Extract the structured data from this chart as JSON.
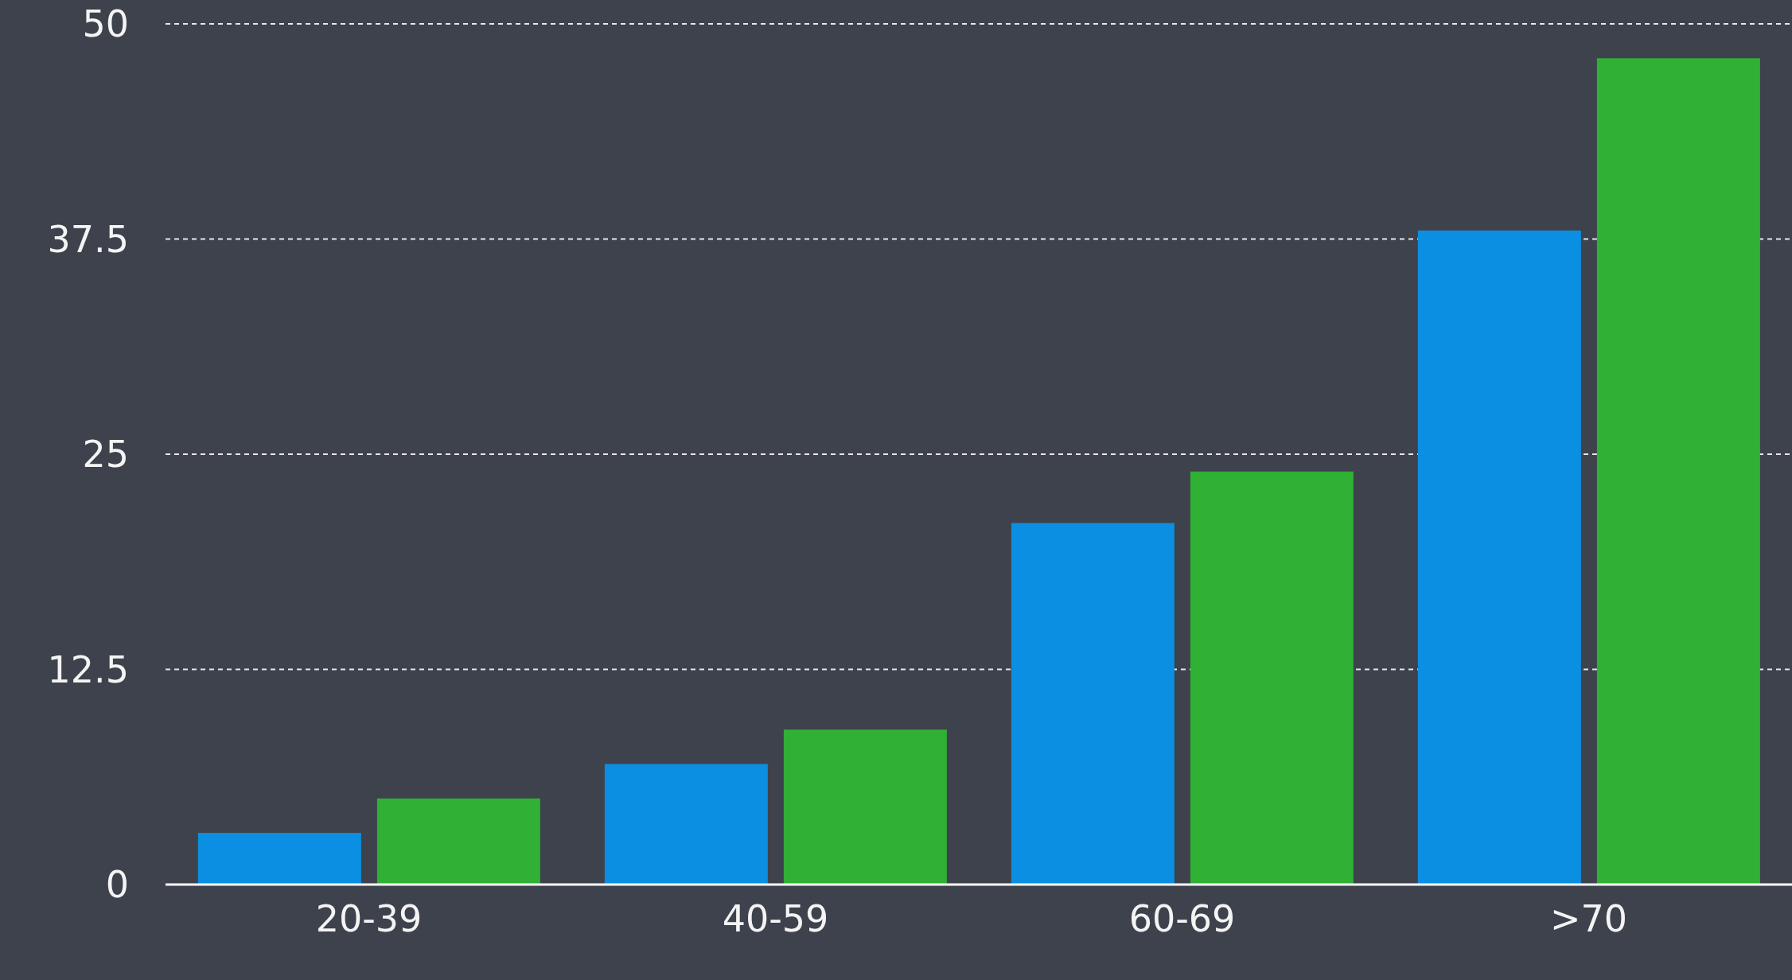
{
  "chart_data": {
    "type": "bar",
    "categories": [
      "20-39",
      "40-59",
      "60-69",
      ">70"
    ],
    "series": [
      {
        "color": "#0a8fe2",
        "values": [
          3,
          7,
          21,
          38
        ]
      },
      {
        "color": "#30b035",
        "values": [
          5,
          9,
          24,
          48
        ]
      }
    ],
    "ylim": [
      0,
      50
    ],
    "yticks": [
      0,
      12.5,
      25,
      37.5,
      50
    ],
    "grid": "y",
    "legend": false
  }
}
